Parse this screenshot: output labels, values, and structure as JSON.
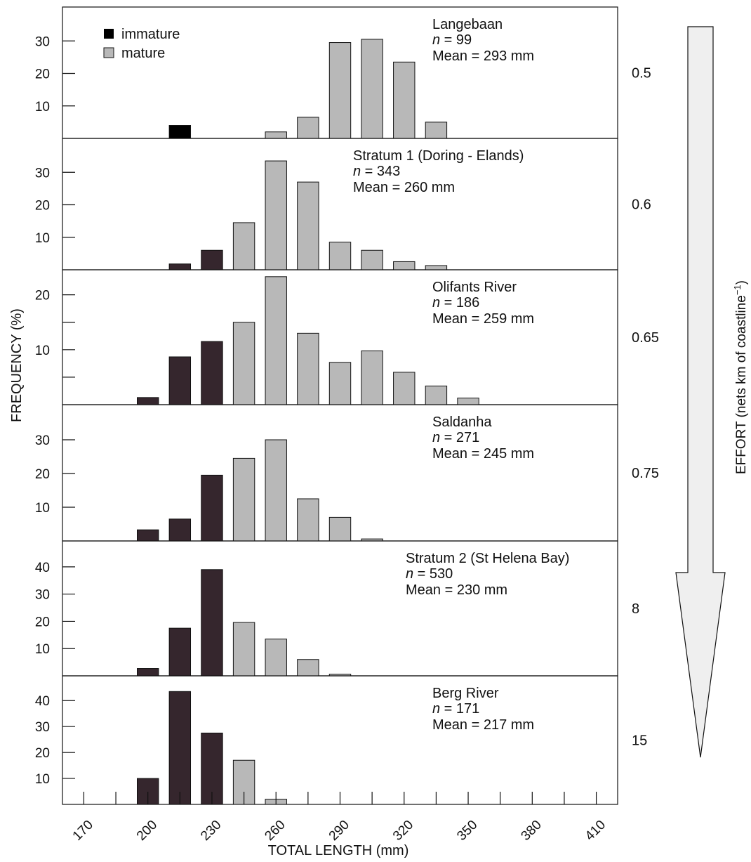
{
  "chart_data": {
    "type": "bar",
    "xlabel": "TOTAL LENGTH (mm)",
    "ylabel": "FREQUENCY (%)",
    "right_axis_label": "EFFORT (nets km of coastline",
    "right_axis_label_sup": "−1",
    "right_axis_label_end": ")",
    "xlim": [
      160,
      420
    ],
    "x_ticks": [
      170,
      200,
      230,
      260,
      290,
      320,
      350,
      380,
      410
    ],
    "legend": {
      "position": "top-left",
      "immature": "immature",
      "mature": "mature"
    },
    "colors": {
      "immature_legend": "#000000",
      "immature": "#35262d",
      "mature": "#b8b8b8",
      "arrow_fill": "#efefef"
    },
    "bin_centers": [
      200,
      215,
      230,
      245,
      260,
      275,
      290,
      305,
      320,
      335,
      350
    ],
    "panels": [
      {
        "title": "Langebaan",
        "n_prefix": "n",
        "n_text": " = 99",
        "mean_text": "Mean = 293 mm",
        "effort": "0.5",
        "ylim": [
          0,
          40
        ],
        "ticks": [
          10,
          20,
          30
        ],
        "tick_labels": [
          "10",
          "20",
          "30"
        ],
        "bars": [
          {
            "x": 215,
            "value": 4,
            "group": "immature_legend"
          },
          {
            "x": 260,
            "value": 2,
            "group": "mature"
          },
          {
            "x": 275,
            "value": 6.5,
            "group": "mature"
          },
          {
            "x": 290,
            "value": 29.5,
            "group": "mature"
          },
          {
            "x": 305,
            "value": 30.5,
            "group": "mature"
          },
          {
            "x": 320,
            "value": 23.5,
            "group": "mature"
          },
          {
            "x": 335,
            "value": 5,
            "group": "mature"
          }
        ]
      },
      {
        "title": "Stratum 1 (Doring - Elands)",
        "n_prefix": "n",
        "n_text": " = 343",
        "mean_text": "Mean = 260 mm",
        "effort": "0.6",
        "ylim": [
          0,
          40
        ],
        "ticks": [
          10,
          20,
          30
        ],
        "tick_labels": [
          "10",
          "20",
          "30"
        ],
        "bars": [
          {
            "x": 215,
            "value": 1.8,
            "group": "immature"
          },
          {
            "x": 230,
            "value": 6,
            "group": "immature"
          },
          {
            "x": 245,
            "value": 14.5,
            "group": "mature"
          },
          {
            "x": 260,
            "value": 33.5,
            "group": "mature"
          },
          {
            "x": 275,
            "value": 27,
            "group": "mature"
          },
          {
            "x": 290,
            "value": 8.5,
            "group": "mature"
          },
          {
            "x": 305,
            "value": 6,
            "group": "mature"
          },
          {
            "x": 320,
            "value": 2.5,
            "group": "mature"
          },
          {
            "x": 335,
            "value": 1.3,
            "group": "mature"
          }
        ]
      },
      {
        "title": "Olifants River",
        "n_prefix": "n",
        "n_text": " = 186",
        "mean_text": "Mean = 259 mm",
        "effort": "0.65",
        "ylim": [
          0,
          24.3
        ],
        "ticks": [
          5,
          10,
          15,
          20
        ],
        "tick_labels": [
          "",
          "10",
          "",
          "20"
        ],
        "bars": [
          {
            "x": 200,
            "value": 1.3,
            "group": "immature"
          },
          {
            "x": 215,
            "value": 8.7,
            "group": "immature"
          },
          {
            "x": 230,
            "value": 11.5,
            "group": "immature"
          },
          {
            "x": 245,
            "value": 15,
            "group": "mature"
          },
          {
            "x": 260,
            "value": 23.3,
            "group": "mature"
          },
          {
            "x": 275,
            "value": 13,
            "group": "mature"
          },
          {
            "x": 290,
            "value": 7.7,
            "group": "mature"
          },
          {
            "x": 305,
            "value": 9.8,
            "group": "mature"
          },
          {
            "x": 320,
            "value": 5.9,
            "group": "mature"
          },
          {
            "x": 335,
            "value": 3.4,
            "group": "mature"
          },
          {
            "x": 350,
            "value": 1.2,
            "group": "mature"
          }
        ]
      },
      {
        "title": "Saldanha",
        "n_prefix": "n",
        "n_text": " = 271",
        "mean_text": "Mean = 245 mm",
        "effort": "0.75",
        "ylim": [
          0,
          40
        ],
        "ticks": [
          10,
          20,
          30
        ],
        "tick_labels": [
          "10",
          "20",
          "30"
        ],
        "bars": [
          {
            "x": 200,
            "value": 3.3,
            "group": "immature"
          },
          {
            "x": 215,
            "value": 6.5,
            "group": "immature"
          },
          {
            "x": 230,
            "value": 19.5,
            "group": "immature"
          },
          {
            "x": 245,
            "value": 24.5,
            "group": "mature"
          },
          {
            "x": 260,
            "value": 30,
            "group": "mature"
          },
          {
            "x": 275,
            "value": 12.5,
            "group": "mature"
          },
          {
            "x": 290,
            "value": 7,
            "group": "mature"
          },
          {
            "x": 305,
            "value": 0.6,
            "group": "mature"
          }
        ]
      },
      {
        "title": "Stratum 2 (St Helena Bay)",
        "n_prefix": "n",
        "n_text": " = 530",
        "mean_text": "Mean = 230 mm",
        "effort": "8",
        "ylim": [
          0,
          49
        ],
        "ticks": [
          10,
          20,
          30,
          40
        ],
        "tick_labels": [
          "10",
          "20",
          "30",
          "40"
        ],
        "bars": [
          {
            "x": 200,
            "value": 2.7,
            "group": "immature"
          },
          {
            "x": 215,
            "value": 17.5,
            "group": "immature"
          },
          {
            "x": 230,
            "value": 39,
            "group": "immature"
          },
          {
            "x": 245,
            "value": 19.6,
            "group": "mature"
          },
          {
            "x": 260,
            "value": 13.5,
            "group": "mature"
          },
          {
            "x": 275,
            "value": 6,
            "group": "mature"
          },
          {
            "x": 290,
            "value": 0.6,
            "group": "mature"
          }
        ]
      },
      {
        "title": "Berg River",
        "n_prefix": "n",
        "n_text": " = 171",
        "mean_text": "Mean = 217 mm",
        "effort": "15",
        "ylim": [
          0,
          49
        ],
        "ticks": [
          10,
          20,
          30,
          40
        ],
        "tick_labels": [
          "10",
          "20",
          "30",
          "40"
        ],
        "bars": [
          {
            "x": 200,
            "value": 10,
            "group": "immature"
          },
          {
            "x": 215,
            "value": 43.5,
            "group": "immature"
          },
          {
            "x": 230,
            "value": 27.5,
            "group": "immature"
          },
          {
            "x": 245,
            "value": 17,
            "group": "mature"
          },
          {
            "x": 260,
            "value": 2,
            "group": "mature"
          }
        ]
      }
    ]
  }
}
